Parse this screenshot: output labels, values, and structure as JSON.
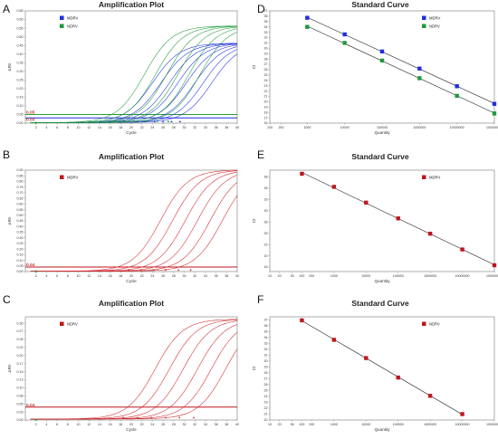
{
  "panel_letters": [
    "A",
    "B",
    "C",
    "D",
    "E",
    "F"
  ],
  "chart_data": [
    {
      "id": "A",
      "type": "line",
      "title": "Amplification Plot",
      "xlabel": "Cycle",
      "ylabel": "ΔRn",
      "xlim": [
        0,
        40
      ],
      "ylim": [
        0,
        0.65
      ],
      "xticks_step": 2,
      "yticks_step": 0.05,
      "legend": [
        {
          "name": "MDRV",
          "color": "#1f2fe0"
        },
        {
          "name": "NDRV",
          "color": "#1e9a3a"
        }
      ],
      "thresholds": [
        {
          "value": 0.05,
          "label": "0.05",
          "color": "#2a9d3a"
        },
        {
          "value": 0.03,
          "label": "0.03",
          "color": "#1f2fe0"
        }
      ],
      "series": [
        {
          "color": "#1f2fe0",
          "midpoints": [
            24,
            25.6,
            27.2,
            28.8,
            30.4,
            32,
            33.6,
            35.2
          ],
          "plateau": 0.46
        },
        {
          "color": "#1e9a3a",
          "midpoints": [
            22.5,
            24.6,
            26.7,
            28.8,
            30.9,
            33
          ],
          "plateau": 0.56
        }
      ],
      "grid": false,
      "legend_position": "top-left"
    },
    {
      "id": "B",
      "type": "line",
      "title": "Amplification Plot",
      "xlabel": "Cycle",
      "ylabel": "ΔRn",
      "xlim": [
        0,
        40
      ],
      "ylim": [
        0,
        0.9
      ],
      "xticks_step": 2,
      "yticks_step": 0.05,
      "legend": [
        {
          "name": "MDRV",
          "color": "#c0161c"
        }
      ],
      "thresholds": [
        {
          "value": 0.04,
          "label": "0.04",
          "color": "#c0161c"
        }
      ],
      "series": [
        {
          "color": "#d1242b",
          "midpoints": [
            25.5,
            27.8,
            30.2,
            32.5,
            34.9,
            37.2
          ],
          "plateau": 0.9
        }
      ],
      "grid": false,
      "legend_position": "top-left"
    },
    {
      "id": "C",
      "type": "line",
      "title": "Amplification Plot",
      "xlabel": "Cycle",
      "ylabel": "ΔRn",
      "xlim": [
        0,
        40
      ],
      "ylim": [
        0,
        0.32
      ],
      "xticks_step": 2,
      "yticks_step": 0.025,
      "legend": [
        {
          "name": "NDRV",
          "color": "#c0161c"
        }
      ],
      "thresholds": [
        {
          "value": 0.04,
          "label": "0.04",
          "color": "#c0161c"
        }
      ],
      "series": [
        {
          "color": "#d1242b",
          "midpoints": [
            24.5,
            27.2,
            29.8,
            32.5,
            35.1,
            37.8
          ],
          "plateau": 0.31
        }
      ],
      "grid": false,
      "legend_position": "top-left"
    },
    {
      "id": "D",
      "type": "scatter",
      "title": "Standard Curve",
      "xlabel": "Quantity",
      "ylabel": "Ct",
      "xscale": "log",
      "xlim": [
        100,
        100000000
      ],
      "ylim": [
        16,
        37
      ],
      "yticks_step": 1,
      "xtick_labels": [
        {
          "v": 100,
          "t": "100"
        },
        {
          "v": 200,
          "t": "200"
        },
        {
          "v": 1000,
          "t": "1000"
        },
        {
          "v": 10000,
          "t": "10000"
        },
        {
          "v": 100000,
          "t": "100000"
        },
        {
          "v": 1000000,
          "t": "1000000"
        },
        {
          "v": 10000000,
          "t": "10000000"
        },
        {
          "v": 100000000,
          "t": "100000000"
        }
      ],
      "legend": [
        {
          "name": "MDRV",
          "color": "#1f2fe0"
        },
        {
          "name": "NDRV",
          "color": "#1e9a3a"
        }
      ],
      "series": [
        {
          "name": "MDRV",
          "color": "#1f2fe0",
          "x": [
            1000,
            10000,
            100000,
            1000000,
            10000000,
            100000000
          ],
          "y": [
            35.7,
            32.6,
            29.4,
            26.2,
            22.9,
            19.6
          ]
        },
        {
          "name": "NDRV",
          "color": "#1e9a3a",
          "x": [
            1000,
            10000,
            100000,
            1000000,
            10000000,
            100000000
          ],
          "y": [
            34.0,
            31.0,
            27.7,
            24.4,
            21.1,
            17.8
          ]
        }
      ],
      "grid": false,
      "legend_position": "top-right"
    },
    {
      "id": "E",
      "type": "scatter",
      "title": "Standard Curve",
      "xlabel": "Quantity",
      "ylabel": "Ct",
      "xscale": "log",
      "xlim": [
        10,
        100000000
      ],
      "ylim": [
        16.5,
        39
      ],
      "yticks_step": 2.5,
      "xtick_labels": [
        {
          "v": 10,
          "t": "10"
        },
        {
          "v": 20,
          "t": "20"
        },
        {
          "v": 50,
          "t": "50"
        },
        {
          "v": 100,
          "t": "100"
        },
        {
          "v": 200,
          "t": "200"
        },
        {
          "v": 1000,
          "t": "1000"
        },
        {
          "v": 10000,
          "t": "10000"
        },
        {
          "v": 100000,
          "t": "100000"
        },
        {
          "v": 1000000,
          "t": "1000000"
        },
        {
          "v": 10000000,
          "t": "10000000"
        },
        {
          "v": 100000000,
          "t": "100000000"
        }
      ],
      "legend": [
        {
          "name": "MDRV",
          "color": "#c0161c"
        }
      ],
      "series": [
        {
          "name": "MDRV",
          "color": "#c0161c",
          "x": [
            100,
            1000,
            10000,
            100000,
            1000000,
            10000000,
            100000000
          ],
          "y": [
            38.2,
            35.3,
            31.8,
            28.3,
            24.9,
            21.4,
            17.9
          ]
        }
      ],
      "grid": false,
      "legend_position": "top-right"
    },
    {
      "id": "F",
      "type": "scatter",
      "title": "Standard Curve",
      "xlabel": "Quantity",
      "ylabel": "Ct",
      "xscale": "log",
      "xlim": [
        10,
        100000000
      ],
      "ylim": [
        20,
        37.5
      ],
      "yticks_step": 1,
      "xtick_labels": [
        {
          "v": 10,
          "t": "10"
        },
        {
          "v": 20,
          "t": "20"
        },
        {
          "v": 50,
          "t": "50"
        },
        {
          "v": 100,
          "t": "100"
        },
        {
          "v": 200,
          "t": "200"
        },
        {
          "v": 1000,
          "t": "1000"
        },
        {
          "v": 10000,
          "t": "10000"
        },
        {
          "v": 100000,
          "t": "100000"
        },
        {
          "v": 1000000,
          "t": "1000000"
        },
        {
          "v": 10000000,
          "t": "10000000"
        },
        {
          "v": 100000000,
          "t": "100000000"
        }
      ],
      "legend": [
        {
          "name": "NDRV",
          "color": "#c0161c"
        }
      ],
      "series": [
        {
          "name": "NDRV",
          "color": "#c0161c",
          "x": [
            100,
            1000,
            10000,
            100000,
            1000000,
            10000000
          ],
          "y": [
            36.9,
            33.6,
            30.5,
            27.2,
            24.1,
            21.0
          ]
        }
      ],
      "grid": false,
      "legend_position": "top-right"
    }
  ]
}
